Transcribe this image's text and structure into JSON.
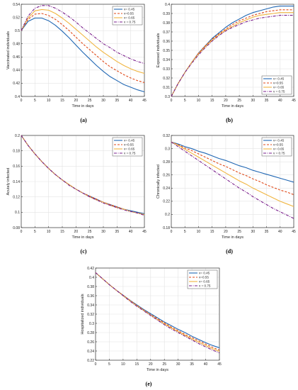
{
  "chart_data": [
    {
      "type": "line",
      "panel_label": "(a)",
      "xlabel": "Time in days",
      "ylabel": "Vaccinated individuals",
      "xlim": [
        0,
        45
      ],
      "ylim": [
        0.4,
        0.54
      ],
      "xticks": [
        "0",
        "5",
        "10",
        "15",
        "20",
        "25",
        "30",
        "35",
        "40",
        "45"
      ],
      "yticks": [
        "0.4",
        "0.42",
        "0.44",
        "0.46",
        "0.48",
        "0.5",
        "0.52",
        "0.54"
      ],
      "grid": true,
      "legend": "top-right",
      "x": [
        0,
        2.5,
        5,
        7.5,
        10,
        12.5,
        15,
        17.5,
        20,
        22.5,
        25,
        27.5,
        30,
        32.5,
        35,
        37.5,
        40,
        42.5,
        45
      ],
      "series": [
        {
          "name": "ν= 0.45",
          "color": "#1f66b3",
          "dash": "solid",
          "values": [
            0.5,
            0.514,
            0.519,
            0.519,
            0.515,
            0.508,
            0.499,
            0.489,
            0.478,
            0.467,
            0.457,
            0.447,
            0.438,
            0.43,
            0.424,
            0.418,
            0.414,
            0.41,
            0.407
          ]
        },
        {
          "name": "ν=0.55",
          "color": "#e04a1a",
          "dash": "dashed",
          "values": [
            0.5,
            0.517,
            0.525,
            0.526,
            0.523,
            0.517,
            0.509,
            0.5,
            0.49,
            0.48,
            0.471,
            0.462,
            0.453,
            0.445,
            0.439,
            0.433,
            0.428,
            0.424,
            0.421
          ]
        },
        {
          "name": "ν= 0.65",
          "color": "#f0b540",
          "dash": "solid",
          "values": [
            0.5,
            0.519,
            0.53,
            0.532,
            0.531,
            0.526,
            0.519,
            0.511,
            0.502,
            0.493,
            0.484,
            0.475,
            0.467,
            0.46,
            0.453,
            0.447,
            0.442,
            0.438,
            0.435
          ]
        },
        {
          "name": "ν = 0.75",
          "color": "#7a1f8c",
          "dash": "dashdot",
          "values": [
            0.5,
            0.522,
            0.534,
            0.538,
            0.538,
            0.534,
            0.528,
            0.521,
            0.513,
            0.504,
            0.496,
            0.488,
            0.48,
            0.474,
            0.467,
            0.462,
            0.457,
            0.453,
            0.45
          ]
        }
      ]
    },
    {
      "type": "line",
      "panel_label": "(b)",
      "xlabel": "Time in days",
      "ylabel": "Exposed individuals",
      "xlim": [
        0,
        45
      ],
      "ylim": [
        0.3,
        0.4
      ],
      "xticks": [
        "0",
        "5",
        "10",
        "15",
        "20",
        "25",
        "30",
        "35",
        "40",
        "45"
      ],
      "yticks": [
        "0.3",
        "0.31",
        "0.32",
        "0.33",
        "0.34",
        "0.35",
        "0.36",
        "0.37",
        "0.38",
        "0.39",
        "0.4"
      ],
      "grid": true,
      "legend": "bottom-right",
      "x": [
        0,
        2.5,
        5,
        7.5,
        10,
        12.5,
        15,
        17.5,
        20,
        22.5,
        25,
        27.5,
        30,
        32.5,
        35,
        37.5,
        40,
        42.5,
        45
      ],
      "series": [
        {
          "name": "ν= 0.45",
          "color": "#1f66b3",
          "dash": "solid",
          "values": [
            0.3,
            0.314,
            0.326,
            0.337,
            0.347,
            0.355,
            0.363,
            0.369,
            0.375,
            0.38,
            0.384,
            0.388,
            0.391,
            0.393,
            0.395,
            0.397,
            0.398,
            0.398,
            0.398
          ]
        },
        {
          "name": "ν=0.55",
          "color": "#e04a1a",
          "dash": "dashed",
          "values": [
            0.3,
            0.314,
            0.326,
            0.337,
            0.347,
            0.355,
            0.362,
            0.368,
            0.373,
            0.378,
            0.382,
            0.385,
            0.388,
            0.39,
            0.392,
            0.393,
            0.394,
            0.394,
            0.394
          ]
        },
        {
          "name": "ν= 0.65",
          "color": "#f0b540",
          "dash": "solid",
          "values": [
            0.3,
            0.314,
            0.326,
            0.337,
            0.346,
            0.354,
            0.361,
            0.367,
            0.372,
            0.376,
            0.38,
            0.383,
            0.386,
            0.388,
            0.389,
            0.39,
            0.391,
            0.391,
            0.391
          ]
        },
        {
          "name": "ν = 0.75",
          "color": "#7a1f8c",
          "dash": "dashdot",
          "values": [
            0.3,
            0.314,
            0.326,
            0.336,
            0.345,
            0.353,
            0.36,
            0.366,
            0.371,
            0.375,
            0.378,
            0.381,
            0.383,
            0.385,
            0.386,
            0.387,
            0.388,
            0.388,
            0.388
          ]
        }
      ]
    },
    {
      "type": "line",
      "panel_label": "(c)",
      "xlabel": "Time in days",
      "ylabel": "Acutely infected",
      "xlim": [
        0,
        45
      ],
      "ylim": [
        0.08,
        0.2
      ],
      "xticks": [
        "0",
        "5",
        "10",
        "15",
        "20",
        "25",
        "30",
        "35",
        "40",
        "45"
      ],
      "yticks": [
        "0.08",
        "0.1",
        "0.12",
        "0.14",
        "0.16",
        "0.18",
        "0.2"
      ],
      "grid": true,
      "legend": "top-right",
      "x": [
        0,
        2.5,
        5,
        7.5,
        10,
        12.5,
        15,
        17.5,
        20,
        22.5,
        25,
        27.5,
        30,
        32.5,
        35,
        37.5,
        40,
        42.5,
        45
      ],
      "series": [
        {
          "name": "ν= 0.45",
          "color": "#1f66b3",
          "dash": "solid",
          "values": [
            0.2,
            0.187,
            0.176,
            0.166,
            0.157,
            0.149,
            0.142,
            0.136,
            0.13,
            0.125,
            0.121,
            0.117,
            0.113,
            0.11,
            0.107,
            0.104,
            0.102,
            0.1,
            0.098
          ]
        },
        {
          "name": "ν=0.55",
          "color": "#e04a1a",
          "dash": "dashed",
          "values": [
            0.2,
            0.187,
            0.176,
            0.166,
            0.157,
            0.149,
            0.142,
            0.136,
            0.13,
            0.125,
            0.121,
            0.117,
            0.113,
            0.11,
            0.107,
            0.104,
            0.101,
            0.099,
            0.097
          ]
        },
        {
          "name": "ν= 0.65",
          "color": "#f0b540",
          "dash": "solid",
          "values": [
            0.2,
            0.187,
            0.176,
            0.166,
            0.157,
            0.149,
            0.142,
            0.136,
            0.13,
            0.125,
            0.12,
            0.116,
            0.113,
            0.109,
            0.106,
            0.104,
            0.101,
            0.099,
            0.097
          ]
        },
        {
          "name": "ν = 0.75",
          "color": "#7a1f8c",
          "dash": "dashdot",
          "values": [
            0.2,
            0.187,
            0.176,
            0.166,
            0.157,
            0.149,
            0.142,
            0.135,
            0.13,
            0.125,
            0.12,
            0.116,
            0.112,
            0.109,
            0.106,
            0.103,
            0.101,
            0.099,
            0.096
          ]
        }
      ]
    },
    {
      "type": "line",
      "panel_label": "(d)",
      "xlabel": "Time in days",
      "ylabel": "Chronically infected",
      "xlim": [
        0,
        45
      ],
      "ylim": [
        0.18,
        0.32
      ],
      "xticks": [
        "0",
        "5",
        "10",
        "15",
        "20",
        "25",
        "30",
        "35",
        "40",
        "45"
      ],
      "yticks": [
        "0.18",
        "0.2",
        "0.22",
        "0.24",
        "0.26",
        "0.28",
        "0.3",
        "0.32"
      ],
      "grid": true,
      "legend": "top-right",
      "x": [
        0,
        2.5,
        5,
        7.5,
        10,
        12.5,
        15,
        17.5,
        20,
        22.5,
        25,
        27.5,
        30,
        32.5,
        35,
        37.5,
        40,
        42.5,
        45
      ],
      "series": [
        {
          "name": "ν= 0.45",
          "color": "#1f66b3",
          "dash": "solid",
          "values": [
            0.31,
            0.307,
            0.303,
            0.3,
            0.296,
            0.293,
            0.289,
            0.285,
            0.282,
            0.278,
            0.274,
            0.271,
            0.267,
            0.264,
            0.261,
            0.258,
            0.255,
            0.252,
            0.249
          ]
        },
        {
          "name": "ν=0.55",
          "color": "#e04a1a",
          "dash": "dashed",
          "values": [
            0.31,
            0.306,
            0.301,
            0.297,
            0.292,
            0.287,
            0.282,
            0.277,
            0.273,
            0.268,
            0.263,
            0.259,
            0.254,
            0.25,
            0.245,
            0.241,
            0.237,
            0.234,
            0.23
          ]
        },
        {
          "name": "ν= 0.65",
          "color": "#f0b540",
          "dash": "solid",
          "values": [
            0.31,
            0.305,
            0.299,
            0.293,
            0.287,
            0.281,
            0.275,
            0.269,
            0.263,
            0.257,
            0.251,
            0.246,
            0.24,
            0.235,
            0.23,
            0.225,
            0.22,
            0.216,
            0.212
          ]
        },
        {
          "name": "ν = 0.75",
          "color": "#7a1f8c",
          "dash": "dashdot",
          "values": [
            0.31,
            0.303,
            0.296,
            0.289,
            0.282,
            0.275,
            0.268,
            0.261,
            0.254,
            0.247,
            0.24,
            0.234,
            0.227,
            0.221,
            0.215,
            0.209,
            0.204,
            0.199,
            0.194
          ]
        }
      ]
    },
    {
      "type": "line",
      "panel_label": "(e)",
      "xlabel": "Time in days",
      "ylabel": "Hospitalized individuals",
      "xlim": [
        0,
        45
      ],
      "ylim": [
        0.22,
        0.42
      ],
      "xticks": [
        "0",
        "5",
        "10",
        "15",
        "20",
        "25",
        "30",
        "35",
        "40",
        "45"
      ],
      "yticks": [
        "0.22",
        "0.24",
        "0.26",
        "0.28",
        "0.3",
        "0.32",
        "0.34",
        "0.36",
        "0.38",
        "0.4",
        "0.42"
      ],
      "grid": true,
      "legend": "top-right",
      "x": [
        0,
        2.5,
        5,
        7.5,
        10,
        12.5,
        15,
        17.5,
        20,
        22.5,
        25,
        27.5,
        30,
        32.5,
        35,
        37.5,
        40,
        42.5,
        45
      ],
      "series": [
        {
          "name": "ν= 0.45",
          "color": "#1f66b3",
          "dash": "solid",
          "values": [
            0.41,
            0.397,
            0.384,
            0.372,
            0.361,
            0.35,
            0.34,
            0.33,
            0.321,
            0.312,
            0.303,
            0.295,
            0.287,
            0.28,
            0.272,
            0.265,
            0.258,
            0.252,
            0.247
          ]
        },
        {
          "name": "ν=0.55",
          "color": "#e04a1a",
          "dash": "dashed",
          "values": [
            0.41,
            0.397,
            0.384,
            0.372,
            0.361,
            0.35,
            0.339,
            0.329,
            0.319,
            0.31,
            0.301,
            0.292,
            0.284,
            0.276,
            0.269,
            0.262,
            0.255,
            0.248,
            0.242
          ]
        },
        {
          "name": "ν= 0.65",
          "color": "#f0b540",
          "dash": "solid",
          "values": [
            0.41,
            0.397,
            0.384,
            0.372,
            0.36,
            0.349,
            0.338,
            0.328,
            0.318,
            0.308,
            0.299,
            0.29,
            0.282,
            0.274,
            0.266,
            0.259,
            0.252,
            0.245,
            0.239
          ]
        },
        {
          "name": "ν = 0.75",
          "color": "#7a1f8c",
          "dash": "dashdot",
          "values": [
            0.41,
            0.397,
            0.384,
            0.372,
            0.36,
            0.348,
            0.337,
            0.327,
            0.317,
            0.307,
            0.297,
            0.288,
            0.28,
            0.272,
            0.264,
            0.256,
            0.249,
            0.242,
            0.236
          ]
        }
      ]
    }
  ]
}
